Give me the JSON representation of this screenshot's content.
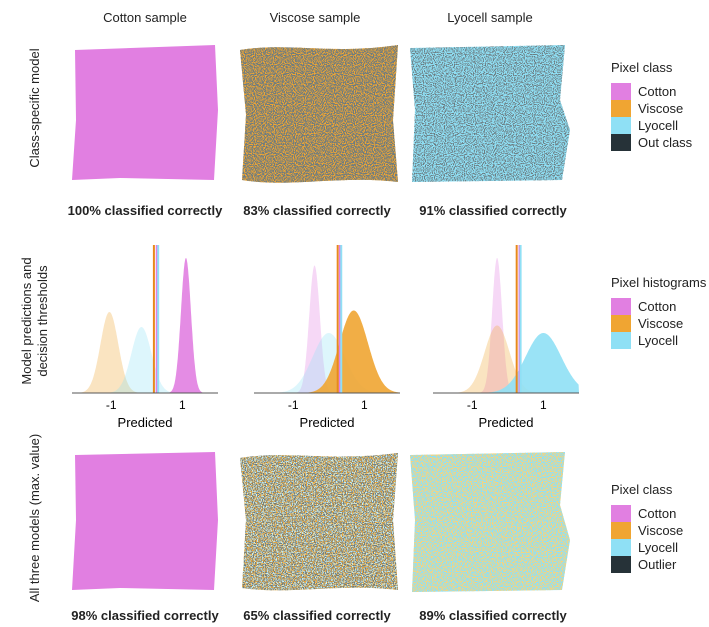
{
  "columns": [
    "Cotton sample",
    "Viscose sample",
    "Lyocell sample"
  ],
  "rows": [
    "Class-specific model",
    "Model predictions and decision thresholds",
    "All three models (max. value)"
  ],
  "colors": {
    "cotton": "#e17fe1",
    "viscose": "#f0a532",
    "lyocell": "#8fe0f5",
    "out": "#263238"
  },
  "top_captions": [
    "100% classified correctly",
    "83% classified correctly",
    "91% classified correctly"
  ],
  "bottom_captions": [
    "98% classified correctly",
    "65% classified correctly",
    "89% classified correctly"
  ],
  "legend_top": {
    "title": "Pixel class",
    "items": [
      "Cotton",
      "Viscose",
      "Lyocell",
      "Out class"
    ]
  },
  "legend_mid": {
    "title": "Pixel histograms",
    "items": [
      "Cotton",
      "Viscose",
      "Lyocell"
    ]
  },
  "legend_bottom": {
    "title": "Pixel class",
    "items": [
      "Cotton",
      "Viscose",
      "Lyocell",
      "Outlier"
    ]
  },
  "chart_data": [
    {
      "type": "area",
      "title": "Cotton sample",
      "xlabel": "Predicted",
      "xticks": [
        "-1",
        "1"
      ],
      "xlim": [
        -2.1,
        2.0
      ],
      "thresholds": {
        "viscose": 0.2,
        "cotton": 0.28,
        "lyocell": 0.32
      },
      "series": [
        {
          "class": "viscose",
          "mean": -1.05,
          "sd": 0.25,
          "peak": 0.54,
          "faded": true
        },
        {
          "class": "lyocell",
          "mean": -0.15,
          "sd": 0.28,
          "peak": 0.44,
          "faded": true
        },
        {
          "class": "cotton",
          "mean": 1.1,
          "sd": 0.14,
          "peak": 0.9,
          "faded": false
        }
      ]
    },
    {
      "type": "area",
      "title": "Viscose sample",
      "xlabel": "Predicted",
      "xticks": [
        "-1",
        "1"
      ],
      "xlim": [
        -2.1,
        2.0
      ],
      "thresholds": {
        "viscose": 0.25,
        "cotton": 0.31,
        "lyocell": 0.35
      },
      "series": [
        {
          "class": "cotton",
          "mean": -0.4,
          "sd": 0.15,
          "peak": 0.85,
          "faded": true
        },
        {
          "class": "lyocell",
          "mean": 0.0,
          "sd": 0.45,
          "peak": 0.4,
          "faded": true
        },
        {
          "class": "viscose",
          "mean": 0.7,
          "sd": 0.4,
          "peak": 0.55,
          "faded": false
        }
      ]
    },
    {
      "type": "area",
      "title": "Lyocell sample",
      "xlabel": "Predicted",
      "xticks": [
        "-1",
        "1"
      ],
      "xlim": [
        -2.1,
        2.0
      ],
      "thresholds": {
        "viscose": 0.25,
        "cotton": 0.33,
        "lyocell": 0.36
      },
      "series": [
        {
          "class": "cotton",
          "mean": -0.3,
          "sd": 0.14,
          "peak": 0.9,
          "faded": true
        },
        {
          "class": "viscose",
          "mean": -0.3,
          "sd": 0.35,
          "peak": 0.45,
          "faded": true
        },
        {
          "class": "lyocell",
          "mean": 1.0,
          "sd": 0.5,
          "peak": 0.4,
          "faded": false
        }
      ]
    }
  ]
}
